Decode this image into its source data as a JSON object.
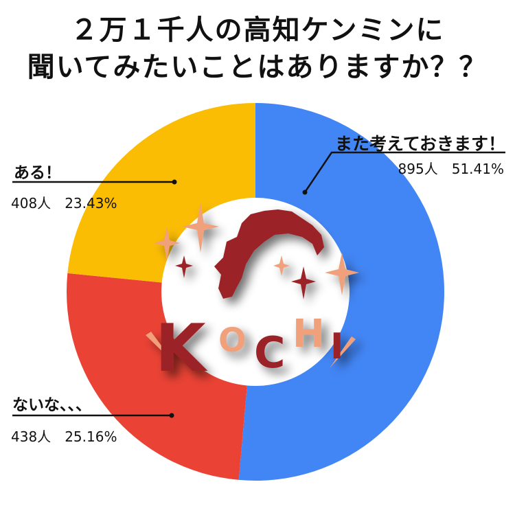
{
  "chart_data": {
    "type": "pie",
    "donut": true,
    "title": [
      "２万１千人の高知ケンミンに",
      "聞いてみたいことはありますか？？"
    ],
    "start_angle": "top",
    "direction": "clockwise",
    "slices": [
      {
        "label": "また考えておきます！",
        "count": "895人",
        "percent": 51.41,
        "percent_text": "51.41%",
        "color": "#4285f4"
      },
      {
        "label": "ないな、、、",
        "count": "438人",
        "percent": 25.16,
        "percent_text": "25.16%",
        "color": "#ea4335"
      },
      {
        "label": "ある！",
        "count": "408人",
        "percent": 23.43,
        "percent_text": "23.43%",
        "color": "#fbbc04"
      }
    ],
    "center_logo": {
      "text": "KOCHI",
      "colors": {
        "dark": "#9b2226",
        "light": "#f0a07a"
      }
    }
  }
}
